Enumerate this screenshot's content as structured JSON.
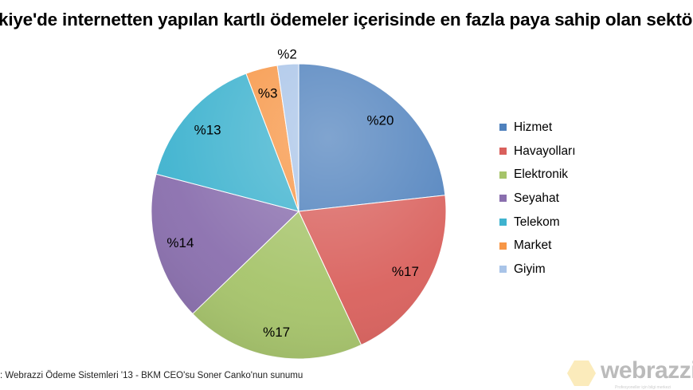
{
  "chart_data": {
    "type": "pie",
    "title": "kiye'de internetten yapılan kartlı ödemeler içerisinde en fazla paya sahip olan sektör",
    "categories": [
      "Hizmet",
      "Havayolları",
      "Elektronik",
      "Seyahat",
      "Telekom",
      "Market",
      "Giyim"
    ],
    "values": [
      20,
      17,
      17,
      14,
      13,
      3,
      2
    ],
    "data_labels": [
      "%20",
      "%17",
      "%17",
      "%14",
      "%13",
      "%3",
      "%2"
    ],
    "colors": [
      "#4f81bd",
      "#d9605c",
      "#a6c46a",
      "#8a6fae",
      "#3fb3cf",
      "#f79646",
      "#a9c4e8"
    ],
    "legend_position": "right",
    "start_angle": "top, clockwise"
  },
  "source": ": Webrazzi Ödeme Sistemleri '13 - BKM CEO'su Soner Canko'nun sunumu",
  "logo": {
    "text": "webrazzi",
    "tagline": "Profesyoneller için bilgi merkezi"
  }
}
